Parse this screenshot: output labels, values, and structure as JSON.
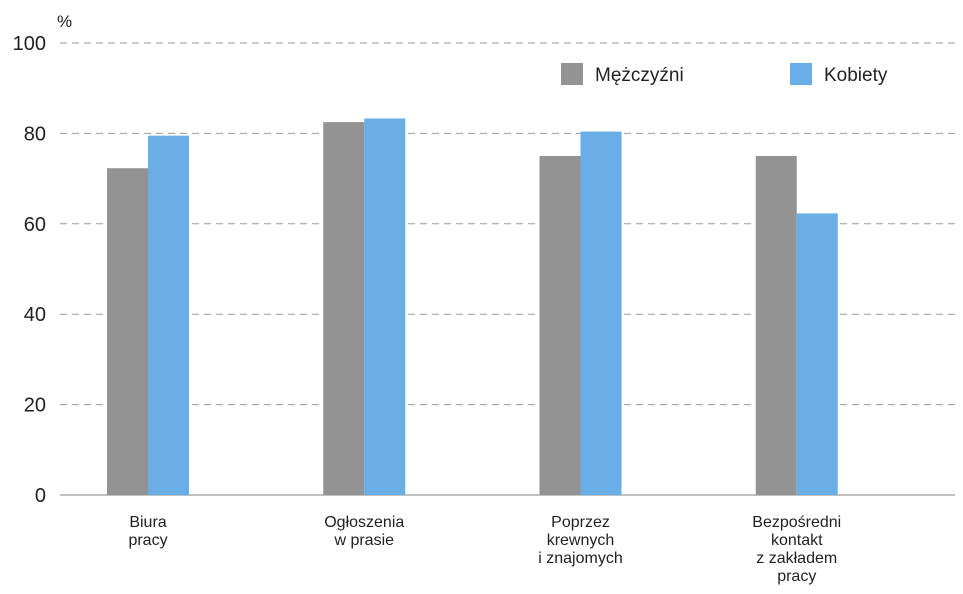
{
  "chart_data": {
    "type": "bar",
    "unit_label": "%",
    "categories": [
      [
        "Biura",
        "pracy"
      ],
      [
        "Ogłoszenia",
        "w prasie"
      ],
      [
        "Poprzez",
        "krewnych",
        "i znajomych"
      ],
      [
        "Bezpośredni",
        "kontakt",
        "z zakładem",
        "pracy"
      ]
    ],
    "series": [
      {
        "name": "Mężczyźni",
        "color": "#939393",
        "values": [
          72.3,
          82.5,
          75.0,
          75.0
        ]
      },
      {
        "name": "Kobiety",
        "color": "#6aaee7",
        "values": [
          79.5,
          83.3,
          80.4,
          62.3
        ]
      }
    ],
    "ylim": [
      0,
      100
    ],
    "yticks": [
      0,
      20,
      40,
      60,
      80,
      100
    ],
    "grid": true,
    "legend_position": "top-right"
  }
}
